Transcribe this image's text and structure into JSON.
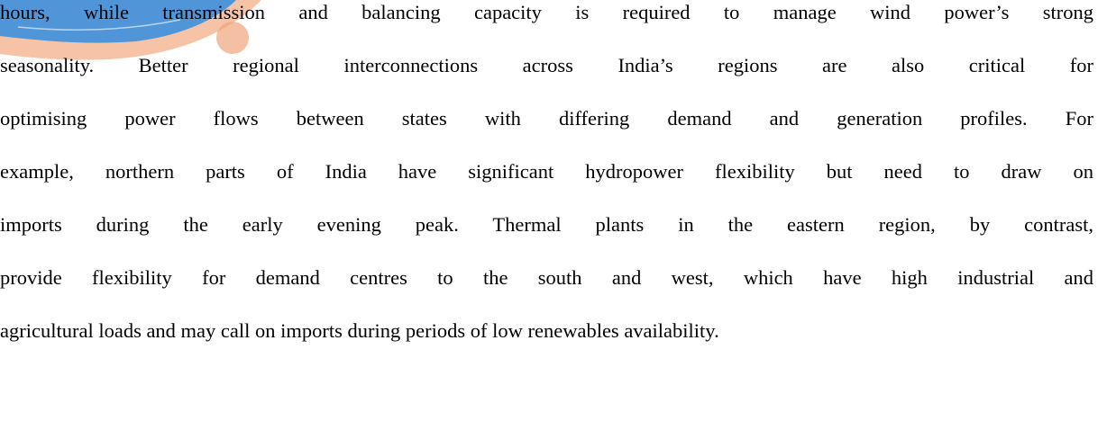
{
  "body": {
    "lines": [
      "hours, while transmission and balancing capacity is required to manage wind power’s strong",
      "seasonality. Better regional interconnections across India’s regions are also critical for",
      "optimising power flows between states with differing demand and generation profiles. For",
      "example, northern parts of India have significant hydropower flexibility but need to draw on",
      "imports during the early evening peak. Thermal plants in the eastern region, by contrast,",
      "provide flexibility for demand centres to the south and west, which have high industrial and",
      "agricultural loads and may call on imports during periods of low renewables availability."
    ]
  }
}
